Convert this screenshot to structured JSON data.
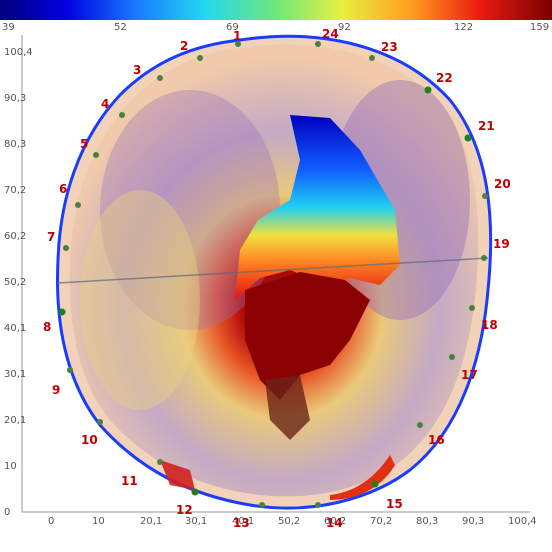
{
  "colorbar": {
    "ticks": [
      "39",
      "52",
      "69",
      "92",
      "122",
      "159"
    ]
  },
  "axes": {
    "x_ticks": [
      "0",
      "10",
      "20,1",
      "30,1",
      "40,1",
      "50,2",
      "60,2",
      "70,2",
      "80,3",
      "90,3",
      "100,4"
    ],
    "y_ticks": [
      "100,4",
      "90,3",
      "80,3",
      "70,2",
      "60,2",
      "50,2",
      "40,1",
      "30,1",
      "20,1",
      "10",
      "0"
    ]
  },
  "markers": [
    "1",
    "2",
    "3",
    "4",
    "5",
    "6",
    "7",
    "8",
    "9",
    "10",
    "11",
    "12",
    "13",
    "14",
    "15",
    "16",
    "17",
    "18",
    "19",
    "20",
    "21",
    "22",
    "23",
    "24"
  ],
  "colors": {
    "marker_label": "#c00000",
    "outline": "#1a3cff",
    "hot": "#8b0000",
    "cold": "#0000c8"
  }
}
